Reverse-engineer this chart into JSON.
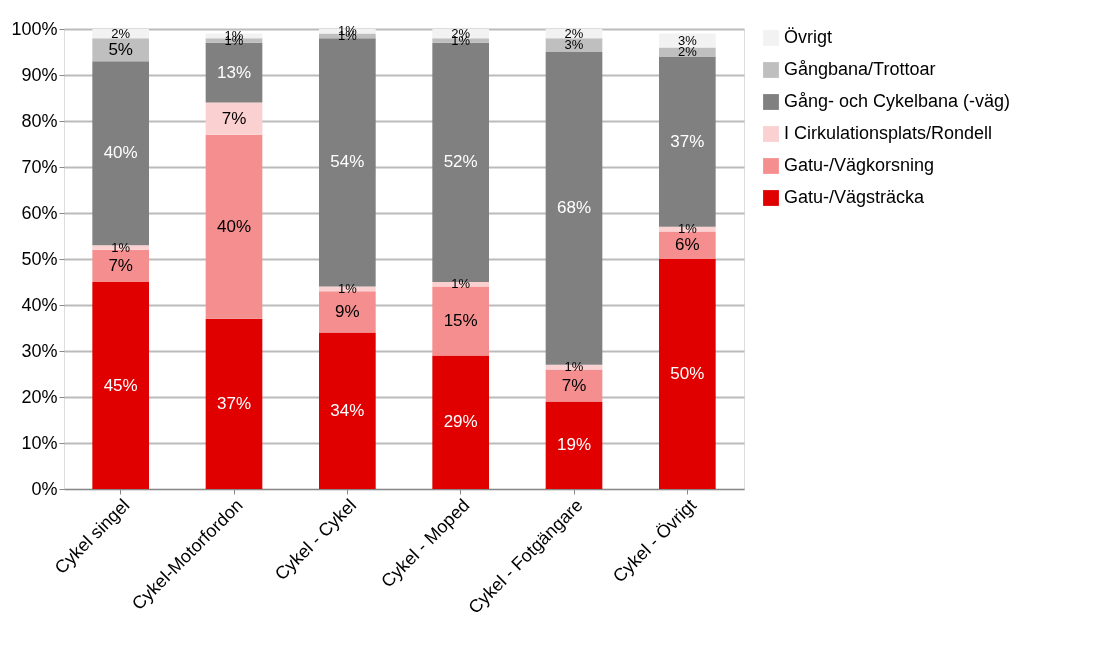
{
  "chart_data": {
    "type": "bar",
    "stacked": true,
    "categories": [
      "Cykel singel",
      "Cykel-Motorfordon",
      "Cykel - Cykel",
      "Cykel - Moped",
      "Cykel - Fotgängare",
      "Cykel - Övrigt"
    ],
    "series": [
      {
        "name": "Gatu-/Vägsträcka",
        "color": "#e00000",
        "values": [
          45,
          37,
          34,
          29,
          19,
          50
        ],
        "value_labels": [
          "45%",
          "37%",
          "34%",
          "29%",
          "19%",
          "50%"
        ]
      },
      {
        "name": "Gatu-/Vägkorsning",
        "color": "#f58f8f",
        "values": [
          7,
          40,
          9,
          15,
          7,
          6
        ],
        "value_labels": [
          "7%",
          "40%",
          "9%",
          "15%",
          "7%",
          "6%"
        ]
      },
      {
        "name": "I Cirkulationsplats/Rondell",
        "color": "#fbd0d0",
        "values": [
          1,
          7,
          1,
          1,
          1,
          1
        ],
        "value_labels": [
          "1%",
          "7%",
          "1%",
          "1%",
          "1%",
          "1%"
        ]
      },
      {
        "name": "Gång- och Cykelbana (-väg)",
        "color": "#808080",
        "values": [
          40,
          13,
          54,
          52,
          68,
          37
        ],
        "value_labels": [
          "40%",
          "13%",
          "54%",
          "52%",
          "68%",
          "37%"
        ]
      },
      {
        "name": "Gångbana/Trottoar",
        "color": "#bfbfbf",
        "values": [
          5,
          1,
          1,
          1,
          3,
          2
        ],
        "value_labels": [
          "5%",
          "1%",
          "1%",
          "1%",
          "3%",
          "2%"
        ]
      },
      {
        "name": "Övrigt",
        "color": "#f2f2f2",
        "values": [
          2,
          1,
          1,
          2,
          2,
          3
        ],
        "value_labels": [
          "2%",
          "1%",
          "1%",
          "2%",
          "2%",
          "3%"
        ]
      }
    ],
    "ylim": [
      0,
      100
    ],
    "yticks": [
      {
        "value": 0,
        "label": "0%"
      },
      {
        "value": 10,
        "label": "10%"
      },
      {
        "value": 20,
        "label": "20%"
      },
      {
        "value": 30,
        "label": "30%"
      },
      {
        "value": 40,
        "label": "40%"
      },
      {
        "value": 50,
        "label": "50%"
      },
      {
        "value": 60,
        "label": "60%"
      },
      {
        "value": 70,
        "label": "70%"
      },
      {
        "value": 80,
        "label": "80%"
      },
      {
        "value": 90,
        "label": "90%"
      },
      {
        "value": 100,
        "label": "100%"
      }
    ],
    "grid": "y",
    "legend": "right"
  }
}
